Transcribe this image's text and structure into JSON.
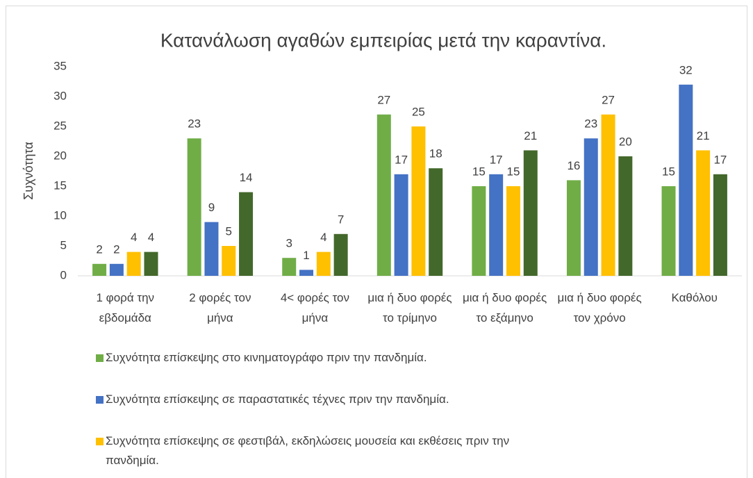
{
  "chart_data": {
    "type": "bar",
    "title": "Κατανάλωση αγαθών εμπειρίας μετά την καραντίνα.",
    "y_label": "Συχνότητα",
    "categories": [
      "1 φορά την εβδομάδα",
      "2 φορές τον μήνα",
      "4< φορές τον μήνα",
      "μια ή δυο φορές το τρίμηνο",
      "μια ή δυο φορές το εξάμηνο",
      "μια ή δυο φορές τον χρόνο",
      "Καθόλου"
    ],
    "series": [
      {
        "name": "Συχνότητα επίσκεψης στο κινηματογράφο πριν την πανδημία.",
        "color": "#70ad47",
        "values": [
          2,
          23,
          3,
          27,
          15,
          16,
          15
        ]
      },
      {
        "name": "Συχνότητα επίσκεψης σε παραστατικές τέχνες πριν την πανδημία.",
        "color": "#4472c4",
        "values": [
          2,
          9,
          1,
          17,
          17,
          23,
          32
        ]
      },
      {
        "name": "Συχνότητα επίσκεψης σε φεστιβάλ, εκδηλώσεις μουσεία και εκθέσεις πριν την πανδημία.",
        "color": "#ffc000",
        "values": [
          4,
          5,
          4,
          25,
          15,
          27,
          21
        ]
      },
      {
        "color": "#43682b",
        "values": [
          4,
          14,
          7,
          18,
          21,
          20,
          17
        ]
      }
    ],
    "ylim": [
      0,
      35
    ],
    "yticks": [
      0,
      5,
      10,
      15,
      20,
      25,
      30,
      35
    ],
    "grid": false
  }
}
